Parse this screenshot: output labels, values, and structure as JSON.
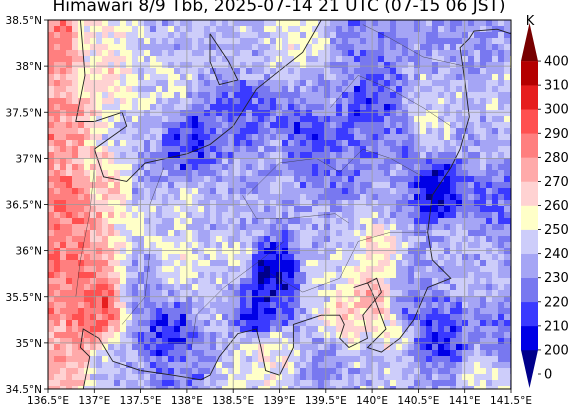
{
  "chart_data": {
    "type": "heatmap",
    "title": "Himawari 8/9 Tbb, 2025-07-14 21 UTC (07-15 06 JST)",
    "x_axis": {
      "range": [
        136.5,
        141.5
      ],
      "ticks": [
        136.5,
        137,
        137.5,
        138,
        138.5,
        139,
        139.5,
        140,
        140.5,
        141,
        141.5
      ],
      "tick_labels": [
        "136.5°E",
        "137°E",
        "137.5°E",
        "138°E",
        "138.5°E",
        "139°E",
        "139.5°E",
        "140°E",
        "140.5°E",
        "141°E",
        "141.5°E"
      ]
    },
    "y_axis": {
      "range": [
        34.5,
        38.5
      ],
      "ticks": [
        34.5,
        35,
        35.5,
        36,
        36.5,
        37,
        37.5,
        38,
        38.5
      ],
      "tick_labels": [
        "34.5°N",
        "35°N",
        "35.5°N",
        "36°N",
        "36.5°N",
        "37°N",
        "37.5°N",
        "38°N",
        "38.5°N"
      ]
    },
    "grid": true,
    "colorbar": {
      "unit": "K",
      "boundaries": [
        0,
        200,
        210,
        220,
        230,
        240,
        250,
        260,
        270,
        280,
        290,
        300,
        310,
        400
      ],
      "tick_labels": [
        "0",
        "200",
        "210",
        "220",
        "230",
        "240",
        "250",
        "260",
        "270",
        "280",
        "290",
        "300",
        "310",
        "400"
      ],
      "colors": [
        "#00008b",
        "#0000e6",
        "#3a3aff",
        "#7878f0",
        "#a5a5f5",
        "#cdcdfa",
        "#ffffc8",
        "#ffd2d2",
        "#ffaaaa",
        "#ff7f7f",
        "#ff5050",
        "#e61e1e",
        "#b40000",
        "#780000"
      ],
      "extend": "both"
    },
    "anchors": [
      {
        "lon": 136.6,
        "lat": 38.3,
        "tbb": 285
      },
      {
        "lon": 136.6,
        "lat": 37.3,
        "tbb": 280
      },
      {
        "lon": 136.7,
        "lat": 36.5,
        "tbb": 285
      },
      {
        "lon": 136.7,
        "lat": 35.7,
        "tbb": 285
      },
      {
        "lon": 136.6,
        "lat": 34.8,
        "tbb": 275
      },
      {
        "lon": 137.0,
        "lat": 35.4,
        "tbb": 290
      },
      {
        "lon": 137.1,
        "lat": 36.8,
        "tbb": 265
      },
      {
        "lon": 137.0,
        "lat": 38.3,
        "tbb": 255
      },
      {
        "lon": 137.1,
        "lat": 37.9,
        "tbb": 260
      },
      {
        "lon": 137.4,
        "lat": 37.2,
        "tbb": 240
      },
      {
        "lon": 137.6,
        "lat": 36.9,
        "tbb": 232
      },
      {
        "lon": 137.8,
        "lat": 38.3,
        "tbb": 240
      },
      {
        "lon": 137.7,
        "lat": 37.7,
        "tbb": 245
      },
      {
        "lon": 138.0,
        "lat": 37.1,
        "tbb": 213
      },
      {
        "lon": 138.0,
        "lat": 36.5,
        "tbb": 245
      },
      {
        "lon": 137.9,
        "lat": 35.9,
        "tbb": 252
      },
      {
        "lon": 137.6,
        "lat": 35.6,
        "tbb": 232
      },
      {
        "lon": 137.8,
        "lat": 35.1,
        "tbb": 213
      },
      {
        "lon": 137.9,
        "lat": 34.7,
        "tbb": 228
      },
      {
        "lon": 137.3,
        "lat": 34.7,
        "tbb": 238
      },
      {
        "lon": 138.5,
        "lat": 38.2,
        "tbb": 240
      },
      {
        "lon": 138.6,
        "lat": 37.5,
        "tbb": 222
      },
      {
        "lon": 138.9,
        "lat": 36.9,
        "tbb": 235
      },
      {
        "lon": 138.4,
        "lat": 36.5,
        "tbb": 237
      },
      {
        "lon": 138.5,
        "lat": 35.9,
        "tbb": 245
      },
      {
        "lon": 138.3,
        "lat": 35.4,
        "tbb": 240
      },
      {
        "lon": 138.6,
        "lat": 34.7,
        "tbb": 248
      },
      {
        "lon": 138.9,
        "lat": 35.7,
        "tbb": 203
      },
      {
        "lon": 138.8,
        "lat": 35.3,
        "tbb": 210
      },
      {
        "lon": 138.9,
        "lat": 34.9,
        "tbb": 255
      },
      {
        "lon": 139.2,
        "lat": 38.2,
        "tbb": 250
      },
      {
        "lon": 139.4,
        "lat": 37.7,
        "tbb": 232
      },
      {
        "lon": 139.3,
        "lat": 37.3,
        "tbb": 218
      },
      {
        "lon": 139.6,
        "lat": 36.8,
        "tbb": 225
      },
      {
        "lon": 139.5,
        "lat": 36.2,
        "tbb": 238
      },
      {
        "lon": 139.5,
        "lat": 35.7,
        "tbb": 245
      },
      {
        "lon": 139.7,
        "lat": 35.3,
        "tbb": 265
      },
      {
        "lon": 139.5,
        "lat": 34.8,
        "tbb": 232
      },
      {
        "lon": 139.9,
        "lat": 38.3,
        "tbb": 228
      },
      {
        "lon": 140.0,
        "lat": 37.6,
        "tbb": 218
      },
      {
        "lon": 140.3,
        "lat": 37.2,
        "tbb": 228
      },
      {
        "lon": 140.2,
        "lat": 36.6,
        "tbb": 235
      },
      {
        "lon": 140.1,
        "lat": 36.0,
        "tbb": 262
      },
      {
        "lon": 140.0,
        "lat": 35.5,
        "tbb": 272
      },
      {
        "lon": 140.2,
        "lat": 35.1,
        "tbb": 255
      },
      {
        "lon": 140.0,
        "lat": 34.7,
        "tbb": 240
      },
      {
        "lon": 140.6,
        "lat": 38.3,
        "tbb": 230
      },
      {
        "lon": 140.7,
        "lat": 37.8,
        "tbb": 240
      },
      {
        "lon": 140.6,
        "lat": 37.4,
        "tbb": 248
      },
      {
        "lon": 140.7,
        "lat": 36.6,
        "tbb": 205
      },
      {
        "lon": 140.9,
        "lat": 36.1,
        "tbb": 238
      },
      {
        "lon": 140.4,
        "lat": 35.8,
        "tbb": 232
      },
      {
        "lon": 140.4,
        "lat": 35.4,
        "tbb": 225
      },
      {
        "lon": 140.7,
        "lat": 35.0,
        "tbb": 213
      },
      {
        "lon": 140.6,
        "lat": 34.6,
        "tbb": 235
      },
      {
        "lon": 141.1,
        "lat": 38.2,
        "tbb": 232
      },
      {
        "lon": 141.4,
        "lat": 37.7,
        "tbb": 245
      },
      {
        "lon": 141.3,
        "lat": 37.1,
        "tbb": 235
      },
      {
        "lon": 141.4,
        "lat": 36.5,
        "tbb": 222
      },
      {
        "lon": 141.2,
        "lat": 35.8,
        "tbb": 240
      },
      {
        "lon": 141.4,
        "lat": 35.1,
        "tbb": 225
      },
      {
        "lon": 141.2,
        "lat": 34.6,
        "tbb": 248
      }
    ],
    "coastlines": [
      [
        [
          136.88,
          34.5
        ],
        [
          136.95,
          34.85
        ],
        [
          136.85,
          34.95
        ],
        [
          136.88,
          35.15
        ],
        [
          137.05,
          35.05
        ],
        [
          137.2,
          34.8
        ],
        [
          137.5,
          34.7
        ],
        [
          137.85,
          34.65
        ],
        [
          138.15,
          34.6
        ],
        [
          138.25,
          34.65
        ],
        [
          138.35,
          34.85
        ],
        [
          138.55,
          35.1
        ],
        [
          138.75,
          35.15
        ],
        [
          138.8,
          34.95
        ],
        [
          138.85,
          34.7
        ],
        [
          139.0,
          34.65
        ],
        [
          139.15,
          34.95
        ],
        [
          139.15,
          35.2
        ],
        [
          139.45,
          35.3
        ],
        [
          139.65,
          35.3
        ],
        [
          139.7,
          35.2
        ],
        [
          139.65,
          35.05
        ],
        [
          139.75,
          34.95
        ],
        [
          139.95,
          35.05
        ],
        [
          139.9,
          35.3
        ],
        [
          140.1,
          35.55
        ],
        [
          140.05,
          35.7
        ],
        [
          139.95,
          35.65
        ],
        [
          139.8,
          35.6
        ],
        [
          139.95,
          35.65
        ],
        [
          140.0,
          35.55
        ]
      ],
      [
        [
          140.0,
          35.55
        ],
        [
          140.15,
          35.15
        ],
        [
          139.95,
          34.95
        ],
        [
          140.1,
          34.9
        ],
        [
          140.3,
          35.05
        ],
        [
          140.45,
          35.25
        ],
        [
          140.6,
          35.6
        ],
        [
          140.85,
          35.7
        ],
        [
          140.65,
          35.9
        ],
        [
          140.6,
          36.2
        ],
        [
          140.65,
          36.6
        ],
        [
          140.85,
          36.9
        ],
        [
          140.95,
          37.1
        ],
        [
          141.05,
          37.45
        ],
        [
          141.0,
          37.85
        ],
        [
          140.95,
          38.2
        ],
        [
          141.05,
          38.3
        ],
        [
          141.1,
          38.38
        ],
        [
          141.35,
          38.4
        ],
        [
          141.5,
          38.35
        ]
      ],
      [
        [
          136.85,
          38.5
        ],
        [
          136.9,
          37.9
        ],
        [
          136.8,
          37.4
        ],
        [
          137.0,
          37.4
        ],
        [
          137.3,
          37.5
        ],
        [
          137.35,
          37.35
        ],
        [
          137.0,
          37.1
        ],
        [
          137.1,
          36.8
        ],
        [
          137.35,
          36.75
        ],
        [
          137.55,
          36.95
        ],
        [
          138.0,
          37.05
        ],
        [
          138.25,
          37.15
        ],
        [
          138.5,
          37.35
        ],
        [
          138.75,
          37.75
        ],
        [
          139.0,
          37.95
        ],
        [
          139.25,
          38.15
        ],
        [
          139.45,
          38.5
        ]
      ],
      [
        [
          138.25,
          38.35
        ],
        [
          138.45,
          38.05
        ],
        [
          138.55,
          37.85
        ],
        [
          138.35,
          37.8
        ],
        [
          138.25,
          38.05
        ],
        [
          138.25,
          38.35
        ]
      ]
    ],
    "boundaries": [
      [
        [
          137.0,
          36.9
        ],
        [
          136.95,
          36.4
        ],
        [
          136.85,
          35.9
        ],
        [
          136.8,
          35.5
        ]
      ],
      [
        [
          137.3,
          35.2
        ],
        [
          137.55,
          35.5
        ],
        [
          137.6,
          36.0
        ],
        [
          137.6,
          36.5
        ],
        [
          137.75,
          36.9
        ]
      ],
      [
        [
          138.05,
          34.95
        ],
        [
          138.1,
          35.3
        ],
        [
          138.4,
          35.6
        ],
        [
          138.8,
          35.9
        ],
        [
          139.05,
          36.1
        ]
      ],
      [
        [
          138.65,
          36.6
        ],
        [
          139.0,
          36.95
        ],
        [
          139.4,
          37.0
        ],
        [
          139.65,
          36.85
        ],
        [
          139.9,
          37.1
        ],
        [
          140.2,
          37.0
        ],
        [
          140.55,
          36.8
        ]
      ],
      [
        [
          138.9,
          35.75
        ],
        [
          139.25,
          35.55
        ],
        [
          139.65,
          35.7
        ],
        [
          139.85,
          36.1
        ],
        [
          140.2,
          36.2
        ],
        [
          140.6,
          36.2
        ]
      ],
      [
        [
          139.55,
          37.55
        ],
        [
          139.85,
          37.9
        ],
        [
          140.2,
          37.75
        ],
        [
          140.55,
          37.55
        ],
        [
          140.85,
          37.35
        ]
      ],
      [
        [
          138.6,
          36.6
        ],
        [
          138.75,
          36.35
        ],
        [
          139.1,
          36.35
        ],
        [
          139.6,
          36.4
        ],
        [
          139.75,
          36.3
        ]
      ],
      [
        [
          141.0,
          38.0
        ],
        [
          140.55,
          38.1
        ],
        [
          140.2,
          38.3
        ],
        [
          139.9,
          38.45
        ]
      ]
    ]
  }
}
